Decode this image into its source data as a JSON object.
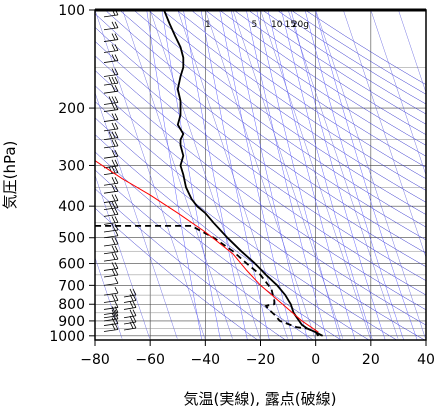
{
  "chart_data": {
    "type": "line",
    "title": "",
    "xlabel": "気温(実線), 露点(破線)",
    "ylabel": "気圧(hPa)",
    "xlim": [
      -80,
      40
    ],
    "ylim": [
      1030,
      100
    ],
    "yscale": "log",
    "x_ticks": [
      -80,
      -60,
      -40,
      -20,
      0,
      20,
      40
    ],
    "y_ticks": [
      100,
      200,
      300,
      400,
      500,
      600,
      700,
      800,
      900,
      1000
    ],
    "grid": true,
    "mixing_ratio_labels": [
      {
        "text": "1",
        "mr": 1
      },
      {
        "text": "5",
        "mr": 5
      },
      {
        "text": "10",
        "mr": 10
      },
      {
        "text": "15",
        "mr": 15
      },
      {
        "text": "20g",
        "mr": 20
      }
    ],
    "series": [
      {
        "style": "solid",
        "color": "#000000",
        "points": [
          {
            "t": 2.5,
            "p": 1000
          },
          {
            "t": 0,
            "p": 975
          },
          {
            "t": -3,
            "p": 950
          },
          {
            "t": -5,
            "p": 925
          },
          {
            "t": -6,
            "p": 900
          },
          {
            "t": -8,
            "p": 850
          },
          {
            "t": -9,
            "p": 800
          },
          {
            "t": -11,
            "p": 750
          },
          {
            "t": -14,
            "p": 700
          },
          {
            "t": -18,
            "p": 650
          },
          {
            "t": -22,
            "p": 600
          },
          {
            "t": -27,
            "p": 550
          },
          {
            "t": -32,
            "p": 500
          },
          {
            "t": -37,
            "p": 450
          },
          {
            "t": -40,
            "p": 420
          },
          {
            "t": -43,
            "p": 400
          },
          {
            "t": -45,
            "p": 380
          },
          {
            "t": -47,
            "p": 350
          },
          {
            "t": -48,
            "p": 320
          },
          {
            "t": -49,
            "p": 300
          },
          {
            "t": -48,
            "p": 280
          },
          {
            "t": -49,
            "p": 260
          },
          {
            "t": -49,
            "p": 250
          },
          {
            "t": -48,
            "p": 240
          },
          {
            "t": -50,
            "p": 225
          },
          {
            "t": -49,
            "p": 210
          },
          {
            "t": -49,
            "p": 200
          },
          {
            "t": -49,
            "p": 190
          },
          {
            "t": -50,
            "p": 175
          },
          {
            "t": -49,
            "p": 160
          },
          {
            "t": -48,
            "p": 150
          },
          {
            "t": -48,
            "p": 140
          },
          {
            "t": -49,
            "p": 130
          },
          {
            "t": -51,
            "p": 120
          },
          {
            "t": -53,
            "p": 110
          },
          {
            "t": -55,
            "p": 100
          }
        ]
      },
      {
        "style": "dashed",
        "color": "#000000",
        "points": [
          {
            "t": 1,
            "p": 1000
          },
          {
            "t": 0,
            "p": 975
          },
          {
            "t": -3,
            "p": 950
          },
          {
            "t": -7,
            "p": 940
          },
          {
            "t": -13,
            "p": 900
          },
          {
            "t": -15,
            "p": 860
          },
          {
            "t": -17,
            "p": 830
          },
          {
            "t": -18,
            "p": 810
          },
          {
            "t": -15,
            "p": 800
          },
          {
            "t": -15,
            "p": 780
          },
          {
            "t": -16,
            "p": 720
          },
          {
            "t": -20,
            "p": 650
          },
          {
            "t": -25,
            "p": 600
          },
          {
            "t": -30,
            "p": 550
          },
          {
            "t": -37,
            "p": 500
          },
          {
            "t": -45,
            "p": 460
          },
          {
            "t": -76,
            "p": 460
          },
          {
            "t": -80,
            "p": 460
          }
        ]
      },
      {
        "style": "solid",
        "color": "#ff0000",
        "points": [
          {
            "t": 1,
            "p": 975
          },
          {
            "t": -5,
            "p": 900
          },
          {
            "t": -12,
            "p": 800
          },
          {
            "t": -20,
            "p": 700
          },
          {
            "t": -25,
            "p": 630
          },
          {
            "t": -30,
            "p": 560
          },
          {
            "t": -40,
            "p": 480
          },
          {
            "t": -50,
            "p": 420
          },
          {
            "t": -60,
            "p": 370
          },
          {
            "t": -70,
            "p": 330
          },
          {
            "t": -80,
            "p": 290
          }
        ]
      }
    ],
    "wind_barbs": [
      {
        "p": 105,
        "n": 2
      },
      {
        "p": 115,
        "n": 2
      },
      {
        "p": 125,
        "n": 2
      },
      {
        "p": 135,
        "n": 2
      },
      {
        "p": 145,
        "n": 2
      },
      {
        "p": 160,
        "n": 2
      },
      {
        "p": 170,
        "n": 3
      },
      {
        "p": 180,
        "n": 2
      },
      {
        "p": 195,
        "n": 3
      },
      {
        "p": 205,
        "n": 2
      },
      {
        "p": 220,
        "n": 2
      },
      {
        "p": 235,
        "n": 2
      },
      {
        "p": 250,
        "n": 3
      },
      {
        "p": 265,
        "n": 2
      },
      {
        "p": 285,
        "n": 2
      },
      {
        "p": 305,
        "n": 2
      },
      {
        "p": 320,
        "n": 3
      },
      {
        "p": 345,
        "n": 2
      },
      {
        "p": 365,
        "n": 2
      },
      {
        "p": 390,
        "n": 2
      },
      {
        "p": 410,
        "n": 3
      },
      {
        "p": 430,
        "n": 2
      },
      {
        "p": 455,
        "n": 2
      },
      {
        "p": 480,
        "n": 2
      },
      {
        "p": 500,
        "n": 1
      },
      {
        "p": 530,
        "n": 2
      },
      {
        "p": 560,
        "n": 2
      },
      {
        "p": 590,
        "n": 2
      },
      {
        "p": 630,
        "n": 2
      },
      {
        "p": 660,
        "n": 2
      },
      {
        "p": 700,
        "n": 1
      },
      {
        "p": 750,
        "n": 1
      },
      {
        "p": 790,
        "n": 2
      },
      {
        "p": 830,
        "n": 1
      },
      {
        "p": 860,
        "n": 2
      },
      {
        "p": 880,
        "n": 2
      },
      {
        "p": 900,
        "n": 2
      },
      {
        "p": 930,
        "n": 2
      },
      {
        "p": 970,
        "n": 2
      }
    ],
    "wind_barbs_low": [
      {
        "p": 760,
        "n": 2
      },
      {
        "p": 790,
        "n": 2
      },
      {
        "p": 830,
        "n": 2
      },
      {
        "p": 880,
        "n": 2
      },
      {
        "p": 920,
        "n": 2
      },
      {
        "p": 960,
        "n": 2
      }
    ]
  }
}
